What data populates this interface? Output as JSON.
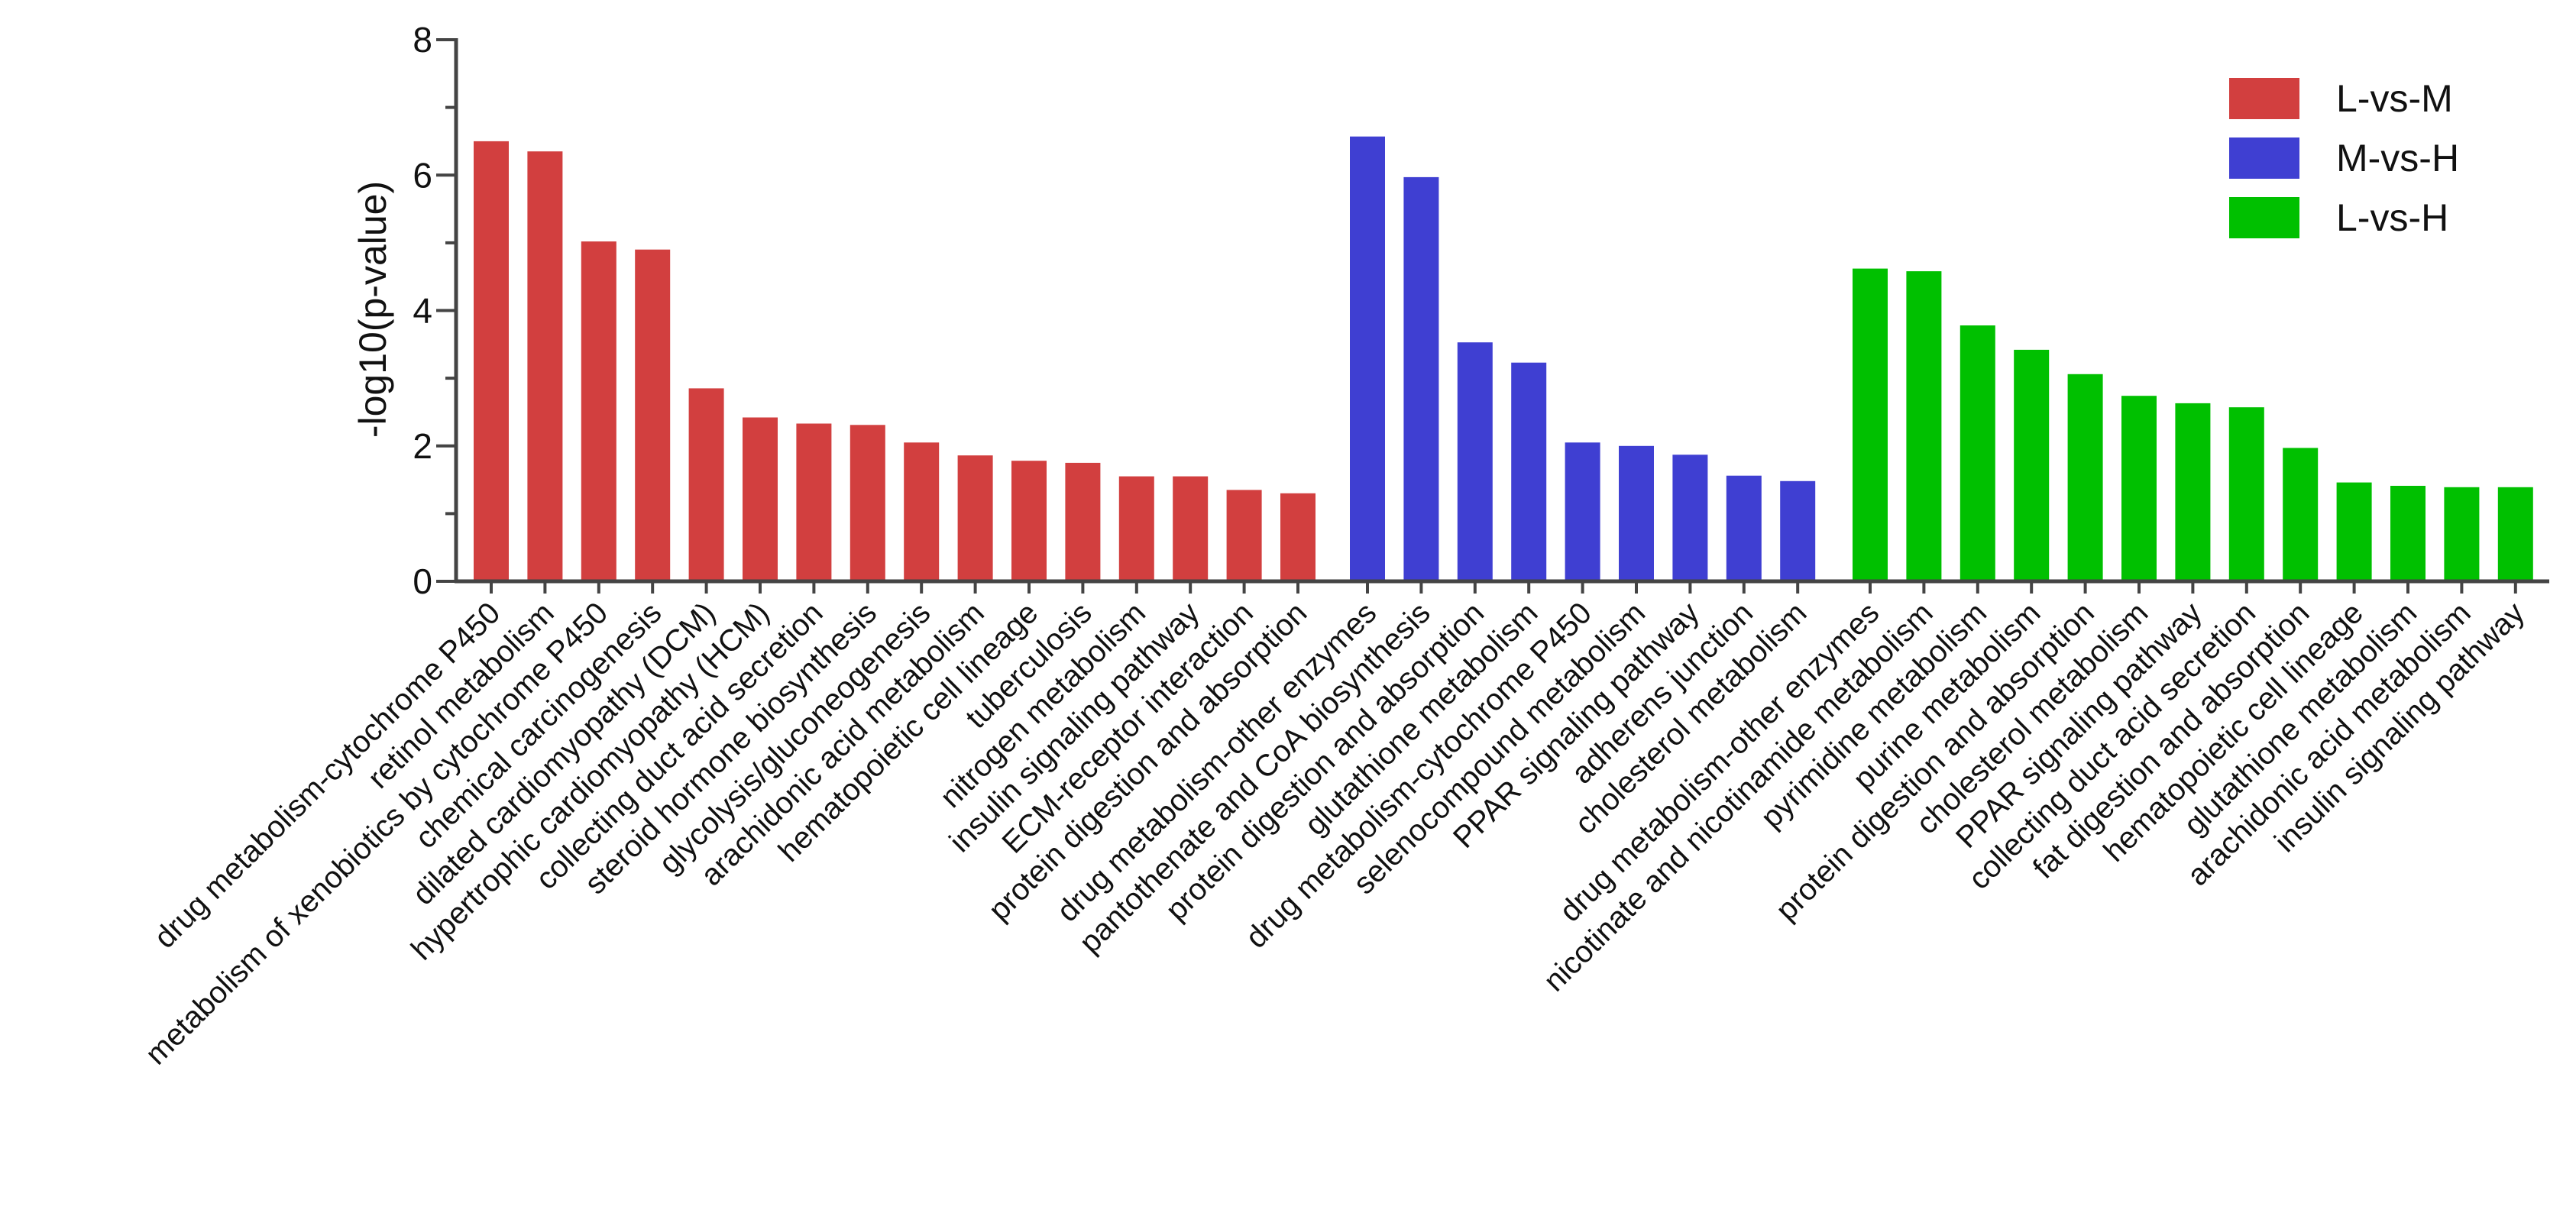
{
  "chart_data": {
    "type": "bar",
    "title": "",
    "xlabel": "",
    "ylabel": "-log10(p-value)",
    "ylim": [
      0,
      8
    ],
    "yticks": [
      0,
      2,
      4,
      6,
      8
    ],
    "grid": false,
    "legend_position": "top-right",
    "series": [
      {
        "name": "L-vs-M",
        "color": "#D23F3F",
        "categories": [
          "drug metabolism-cytochrome P450",
          "retinol metabolism",
          "metabolism of xenobiotics by cytochrome P450",
          "chemical carcinogenesis",
          "dilated cardiomyopathy (DCM)",
          "hypertrophic cardiomyopathy (HCM)",
          "collecting duct acid secretion",
          "steroid hormone biosynthesis",
          "glycolysis/gluconeogenesis",
          "arachidonic acid metabolism",
          "hematopoietic cell lineage",
          "tuberculosis",
          "nitrogen metabolism",
          "insulin signaling pathway",
          "ECM-receptor interaction",
          "protein digestion and absorption"
        ],
        "values": [
          6.5,
          6.35,
          5.02,
          4.9,
          2.85,
          2.42,
          2.33,
          2.31,
          2.05,
          1.86,
          1.78,
          1.75,
          1.55,
          1.55,
          1.35,
          1.3
        ]
      },
      {
        "name": "M-vs-H",
        "color": "#3F3FD2",
        "categories": [
          "drug metabolism-other enzymes",
          "pantothenate and CoA biosynthesis",
          "protein digestion and absorption",
          "glutathione metabolism",
          "drug metabolism-cytochrome P450",
          "selenocompound metabolism",
          "PPAR signaling pathway",
          "adherens junction",
          "cholesterol metabolism"
        ],
        "values": [
          6.57,
          5.97,
          3.53,
          3.23,
          2.05,
          2.0,
          1.87,
          1.56,
          1.48
        ]
      },
      {
        "name": "L-vs-H",
        "color": "#00C000",
        "categories": [
          "drug metabolism-other enzymes",
          "nicotinate and nicotinamide metabolism",
          "pyrimidine metabolism",
          "purine metabolism",
          "protein digestion and absorption",
          "cholesterol metabolism",
          "PPAR signaling pathway",
          "collecting duct acid secretion",
          "fat digestion and absorption",
          "hematopoietic cell lineage",
          "glutathione metabolism",
          "arachidonic acid metabolism",
          "insulin signaling pathway"
        ],
        "values": [
          4.62,
          4.58,
          3.78,
          3.42,
          3.06,
          2.74,
          2.63,
          2.57,
          1.97,
          1.46,
          1.41,
          1.39,
          1.39
        ]
      }
    ]
  }
}
